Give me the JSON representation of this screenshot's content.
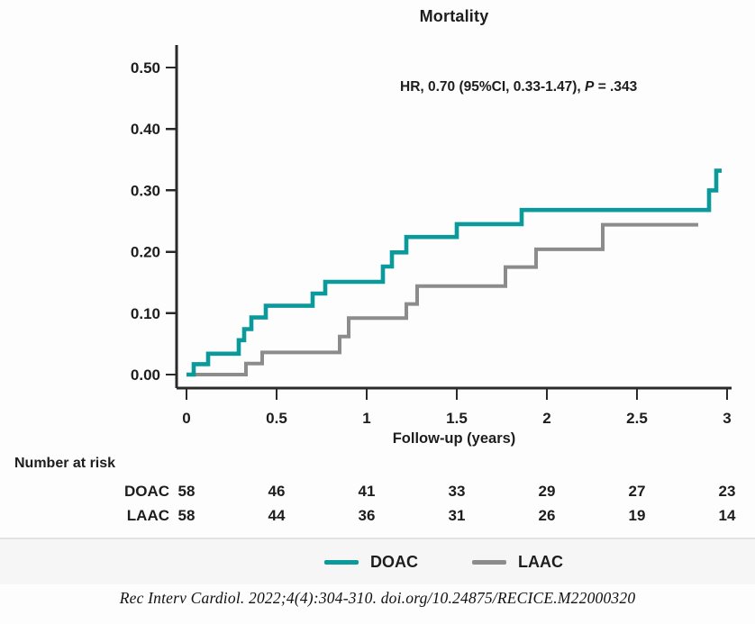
{
  "title": "Mortality",
  "annotation": {
    "prefix": "HR, 0.70 (95%CI, 0.33-1.47), ",
    "p_label": "P",
    "suffix": " = .343"
  },
  "axes": {
    "x_label": "Follow-up (years)",
    "x_ticks": [
      "0",
      "0.5",
      "1",
      "1.5",
      "2",
      "2.5",
      "3"
    ],
    "x_tick_values": [
      0,
      0.5,
      1,
      1.5,
      2,
      2.5,
      3
    ],
    "y_ticks": [
      "0.00",
      "0.10",
      "0.20",
      "0.30",
      "0.40",
      "0.50"
    ],
    "y_tick_values": [
      0,
      0.1,
      0.2,
      0.3,
      0.4,
      0.5
    ]
  },
  "chart_data": {
    "type": "line",
    "subtype": "kaplan-meier-step",
    "title": "Mortality",
    "xlabel": "Follow-up (years)",
    "ylabel": "",
    "xlim": [
      0,
      3
    ],
    "ylim": [
      0,
      0.5
    ],
    "grid": false,
    "legend_position": "bottom",
    "annotation": "HR, 0.70 (95%CI, 0.33-1.47), P = .343",
    "series": [
      {
        "name": "LAAC",
        "color": "#8c8c8c",
        "points": [
          [
            0,
            0
          ],
          [
            0.33,
            0.018
          ],
          [
            0.42,
            0.036
          ],
          [
            0.85,
            0.062
          ],
          [
            0.9,
            0.092
          ],
          [
            1.22,
            0.115
          ],
          [
            1.28,
            0.144
          ],
          [
            1.77,
            0.175
          ],
          [
            1.94,
            0.204
          ],
          [
            2.31,
            0.244
          ]
        ],
        "end_x": 2.84
      },
      {
        "name": "DOAC",
        "color": "#0a9a9c",
        "points": [
          [
            0,
            0
          ],
          [
            0.04,
            0.017
          ],
          [
            0.12,
            0.034
          ],
          [
            0.29,
            0.056
          ],
          [
            0.32,
            0.074
          ],
          [
            0.36,
            0.093
          ],
          [
            0.44,
            0.112
          ],
          [
            0.7,
            0.132
          ],
          [
            0.77,
            0.151
          ],
          [
            1.09,
            0.176
          ],
          [
            1.14,
            0.199
          ],
          [
            1.22,
            0.224
          ],
          [
            1.5,
            0.245
          ],
          [
            1.86,
            0.268
          ],
          [
            2.9,
            0.3
          ],
          [
            2.94,
            0.332
          ]
        ],
        "end_x": 2.97
      }
    ]
  },
  "risk_table": {
    "header": "Number at risk",
    "rows": [
      {
        "label": "DOAC",
        "values": [
          "58",
          "46",
          "41",
          "33",
          "29",
          "27",
          "23"
        ]
      },
      {
        "label": "LAAC",
        "values": [
          "58",
          "44",
          "36",
          "31",
          "26",
          "19",
          "14"
        ]
      }
    ]
  },
  "legend": {
    "items": [
      {
        "label": "DOAC",
        "color": "#0a9a9c"
      },
      {
        "label": "LAAC",
        "color": "#8c8c8c"
      }
    ]
  },
  "citation": "Rec Interv Cardiol. 2022;4(4):304-310. doi.org/10.24875/RECICE.M22000320",
  "colors": {
    "doac": "#0a9a9c",
    "laac": "#8c8c8c",
    "axis": "#2a2a2a",
    "text": "#1d1d1d"
  }
}
